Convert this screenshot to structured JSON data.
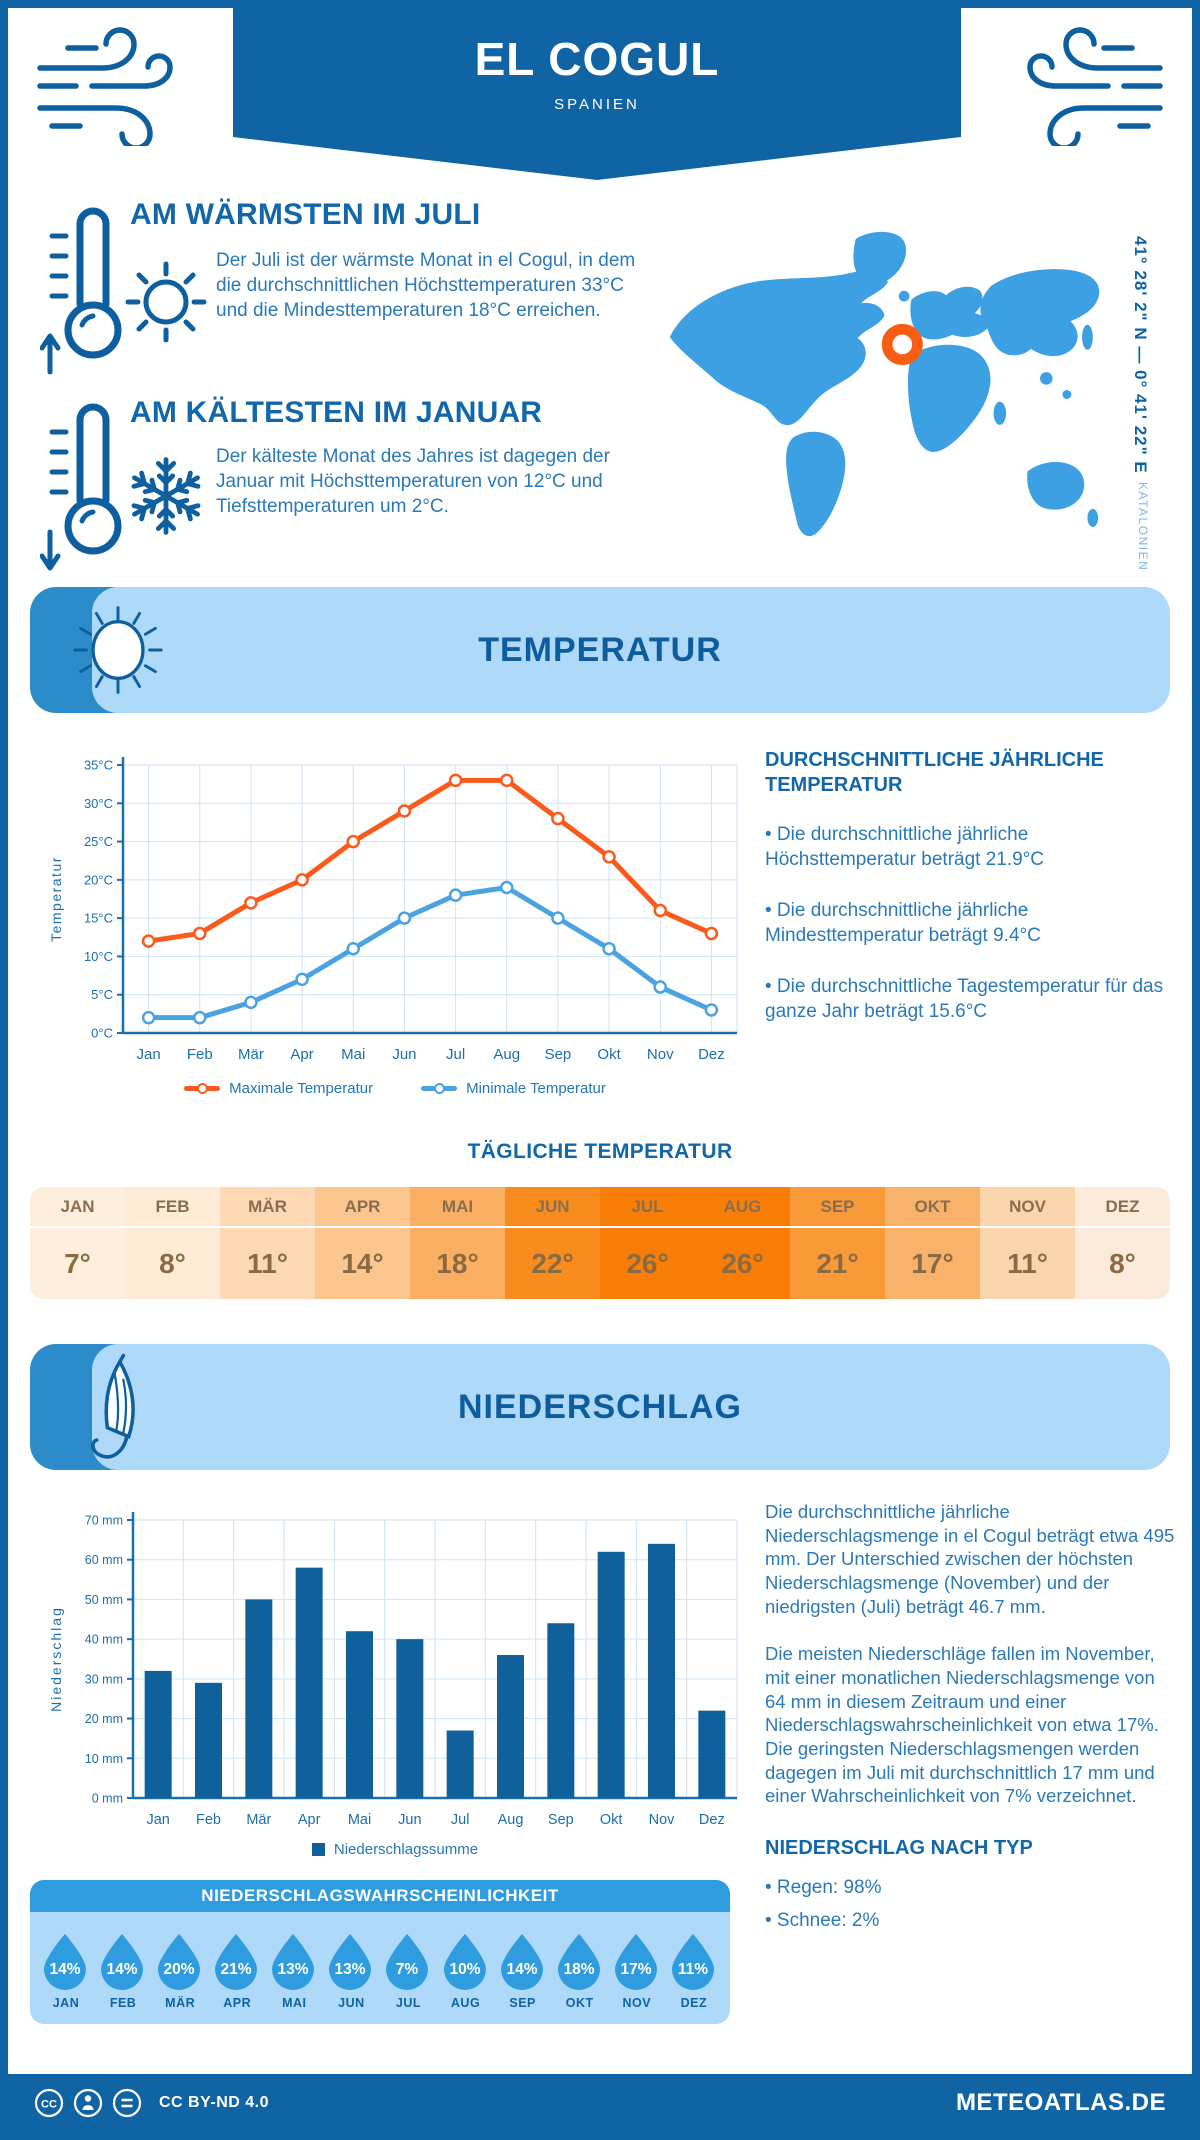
{
  "header": {
    "title": "EL COGUL",
    "subtitle": "SPANIEN"
  },
  "warmest": {
    "title": "AM WÄRMSTEN IM JULI",
    "text": "Der Juli ist der wärmste Monat in el Cogul, in dem die durchschnittlichen Höchsttemperaturen 33°C und die Mindesttemperaturen 18°C erreichen."
  },
  "coldest": {
    "title": "AM KÄLTESTEN IM JANUAR",
    "text": "Der kälteste Monat des Jahres ist dagegen der Januar mit Höchsttemperaturen von 12°C und Tiefsttemperaturen um 2°C."
  },
  "map": {
    "coordinates": "41° 28' 2\" N — 0° 41' 22\" E",
    "region": "KATALONIEN"
  },
  "temperature_section": {
    "banner": "TEMPERATUR",
    "stats_title": "DURCHSCHNITTLICHE JÄHRLICHE TEMPERATUR",
    "stats": [
      "• Die durchschnittliche jährliche Höchsttemperatur beträgt 21.9°C",
      "• Die durchschnittliche jährliche Mindesttemperatur beträgt 9.4°C",
      "• Die durchschnittliche Tagestemperatur für das ganze Jahr beträgt 15.6°C"
    ],
    "daily_title": "TÄGLICHE TEMPERATUR"
  },
  "precipitation_section": {
    "banner": "NIEDERSCHLAG",
    "text1": "Die durchschnittliche jährliche Niederschlagsmenge in el Cogul beträgt etwa 495 mm. Der Unterschied zwischen der höchsten Niederschlagsmenge (November) und der niedrigsten (Juli) beträgt 46.7 mm.",
    "text2": "Die meisten Niederschläge fallen im November, mit einer monatlichen Niederschlagsmenge von 64 mm in diesem Zeitraum und einer Niederschlagswahrscheinlichkeit von etwa 17%. Die geringsten Niederschlagsmengen werden dagegen im Juli mit durchschnittlich 17 mm und einer Wahrscheinlichkeit von 7% verzeichnet.",
    "probability_title": "NIEDERSCHLAGSWAHRSCHEINLICHKEIT",
    "type_title": "NIEDERSCHLAG NACH TYP",
    "types": [
      "• Regen: 98%",
      "• Schnee: 2%"
    ]
  },
  "footer": {
    "license": "CC BY-ND 4.0",
    "site": "METEOATLAS.DE"
  },
  "colors": {
    "primary": "#1064a4",
    "icon_blue": "#0e5f9f",
    "light_blue": "#aed9f8",
    "medium_blue": "#2f9cdf",
    "map_blue": "#3da0e3",
    "marker_orange": "#f85d14",
    "grid": "#cfe2f2",
    "axis": "#1a6fae"
  },
  "chart_data": [
    {
      "type": "line",
      "title": "Temperatur",
      "categories": [
        "Jan",
        "Feb",
        "Mär",
        "Apr",
        "Mai",
        "Jun",
        "Jul",
        "Aug",
        "Sep",
        "Okt",
        "Nov",
        "Dez"
      ],
      "series": [
        {
          "name": "Maximale Temperatur",
          "color": "#fa5a1b",
          "values": [
            12,
            13,
            17,
            20,
            25,
            29,
            33,
            33,
            28,
            23,
            16,
            13
          ]
        },
        {
          "name": "Minimale Temperatur",
          "color": "#4aa3e0",
          "values": [
            2,
            2,
            4,
            7,
            11,
            15,
            18,
            19,
            15,
            11,
            6,
            3
          ]
        }
      ],
      "ylabel": "Temperatur",
      "xlabel": "",
      "ylim": [
        0,
        35
      ],
      "ytick_step": 5,
      "ytick_suffix": "°C",
      "grid": true,
      "legend_position": "bottom"
    },
    {
      "type": "table",
      "title": "TÄGLICHE TEMPERATUR",
      "categories": [
        "JAN",
        "FEB",
        "MÄR",
        "APR",
        "MAI",
        "JUN",
        "JUL",
        "AUG",
        "SEP",
        "OKT",
        "NOV",
        "DEZ"
      ],
      "values": [
        "7°",
        "8°",
        "11°",
        "14°",
        "18°",
        "22°",
        "26°",
        "26°",
        "21°",
        "17°",
        "11°",
        "8°"
      ],
      "cell_colors": [
        "#fdeedd",
        "#fdebd6",
        "#fcd9b4",
        "#fbc78e",
        "#faaf62",
        "#f88c1e",
        "#f87e08",
        "#f87e08",
        "#f89a38",
        "#f9b26b",
        "#fbd5ae",
        "#fcebdb"
      ]
    },
    {
      "type": "bar",
      "title": "Niederschlag",
      "categories": [
        "Jan",
        "Feb",
        "Mär",
        "Apr",
        "Mai",
        "Jun",
        "Jul",
        "Aug",
        "Sep",
        "Okt",
        "Nov",
        "Dez"
      ],
      "values": [
        32,
        29,
        50,
        58,
        42,
        40,
        17,
        36,
        44,
        62,
        64,
        22
      ],
      "ylabel": "Niederschlag",
      "xlabel": "",
      "ylim": [
        0,
        70
      ],
      "ytick_step": 10,
      "ytick_suffix": " mm",
      "grid": true,
      "legend": "Niederschlagssumme",
      "bar_color": "#0f609b"
    },
    {
      "type": "bar",
      "title": "NIEDERSCHLAGSWAHRSCHEINLICHKEIT",
      "categories": [
        "JAN",
        "FEB",
        "MÄR",
        "APR",
        "MAI",
        "JUN",
        "JUL",
        "AUG",
        "SEP",
        "OKT",
        "NOV",
        "DEZ"
      ],
      "values": [
        14,
        14,
        20,
        21,
        13,
        13,
        7,
        10,
        14,
        18,
        17,
        11
      ],
      "unit": "%",
      "display": "droplets"
    }
  ]
}
